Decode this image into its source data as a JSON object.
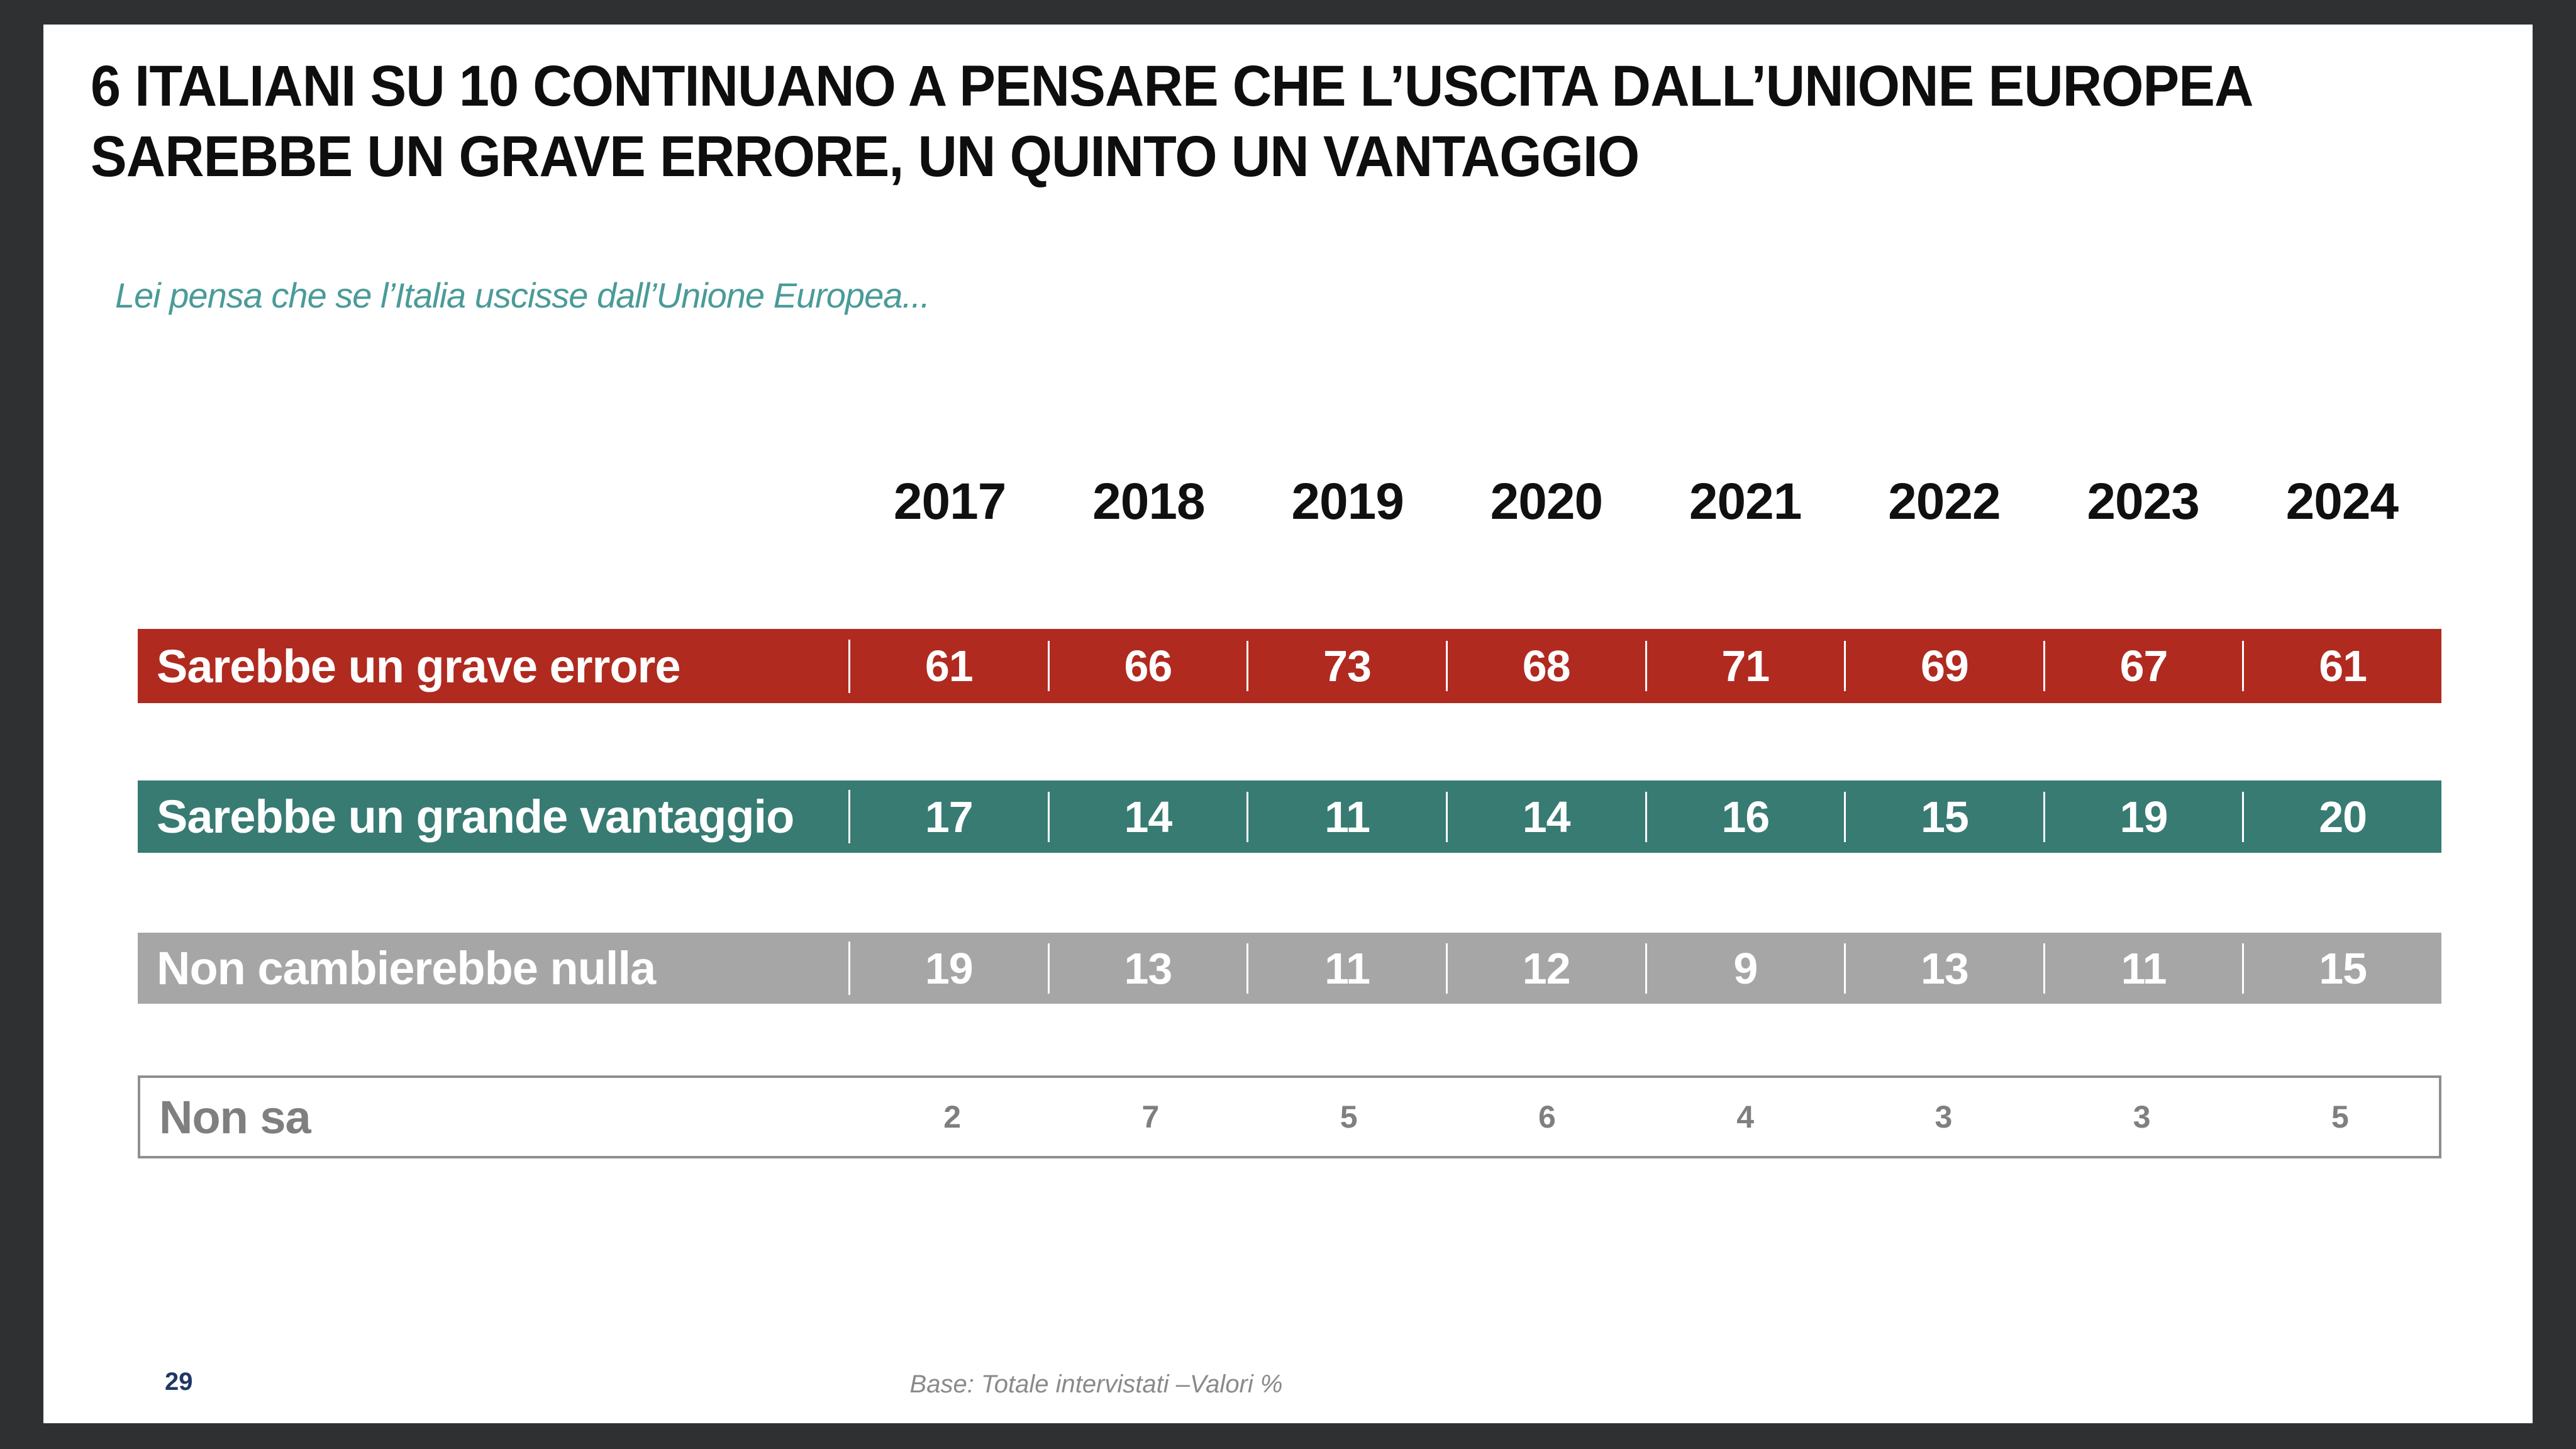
{
  "slide": {
    "title": "6 ITALIANI SU 10 CONTINUANO A PENSARE CHE L’USCITA DALL’UNIONE EUROPEA SAREBBE UN GRAVE ERRORE, UN QUINTO UN VANTAGGIO",
    "subtitle": "Lei pensa che se l’Italia uscisse dall’Unione Europea...",
    "page_number": "29",
    "footnote": "Base: Totale intervistati  –Valori %"
  },
  "colors": {
    "background_frame": "#2f3031",
    "slide_background": "#ffffff",
    "title_text": "#0e0e0e",
    "subtitle_text": "#4a9b98",
    "page_number_text": "#1f3864",
    "footnote_text": "#8a8a8a",
    "outline_row_border": "#8f8f8f",
    "outline_row_text": "#7f7f7f"
  },
  "chart_data": {
    "type": "table",
    "title": "6 ITALIANI SU 10 CONTINUANO A PENSARE CHE L’USCITA DALL’UNIONE EUROPEA SAREBBE UN GRAVE ERRORE, UN QUINTO UN VANTAGGIO",
    "question": "Lei pensa che se l’Italia uscisse dall’Unione Europea...",
    "unit": "Valori %",
    "base": "Totale intervistati",
    "categories": [
      "2017",
      "2018",
      "2019",
      "2020",
      "2021",
      "2022",
      "2023",
      "2024"
    ],
    "series": [
      {
        "name": "Sarebbe un grave errore",
        "values": [
          61,
          66,
          73,
          68,
          71,
          69,
          67,
          61
        ],
        "color": "#b02a1f",
        "text_color": "#ffffff",
        "variant": "filled"
      },
      {
        "name": "Sarebbe un grande vantaggio",
        "values": [
          17,
          14,
          11,
          14,
          16,
          15,
          19,
          20
        ],
        "color": "#377b73",
        "text_color": "#ffffff",
        "variant": "filled"
      },
      {
        "name": "Non cambierebbe nulla",
        "values": [
          19,
          13,
          11,
          12,
          9,
          13,
          11,
          15
        ],
        "color": "#a6a6a6",
        "text_color": "#ffffff",
        "variant": "filled"
      },
      {
        "name": "Non sa",
        "values": [
          2,
          7,
          5,
          6,
          4,
          3,
          3,
          5
        ],
        "color": "#ffffff",
        "text_color": "#7f7f7f",
        "variant": "outline"
      }
    ],
    "legend_position": "none",
    "grid": false
  }
}
